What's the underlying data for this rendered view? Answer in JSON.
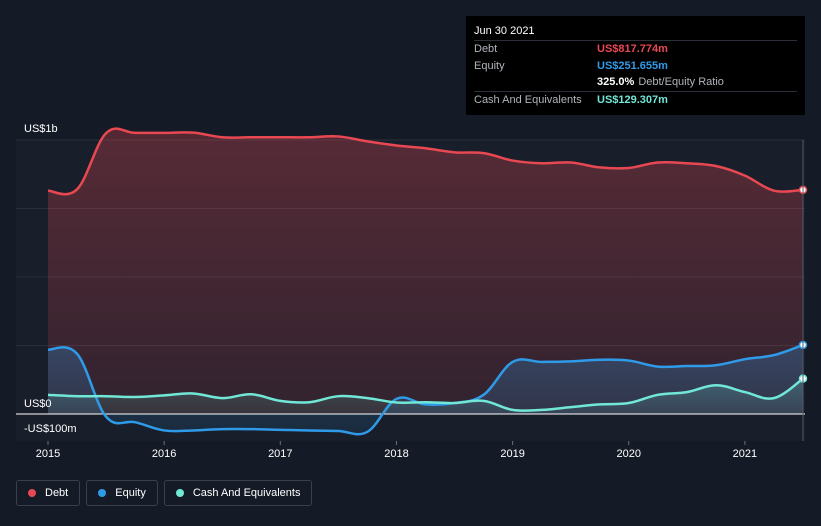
{
  "tooltip": {
    "date": "Jun 30 2021",
    "rows": [
      {
        "label": "Debt",
        "value": "US$817.774m",
        "color": "#e84852"
      },
      {
        "label": "Equity",
        "value": "US$251.655m",
        "color": "#2f9be8"
      },
      {
        "label": "",
        "value": "325.0%",
        "extra": "Debt/Equity Ratio",
        "color": "#ffffff"
      },
      {
        "label": "Cash And Equivalents",
        "value": "US$129.307m",
        "color": "#71e7d6"
      }
    ]
  },
  "legend": [
    {
      "label": "Debt",
      "color": "#e84852"
    },
    {
      "label": "Equity",
      "color": "#2f9be8"
    },
    {
      "label": "Cash And Equivalents",
      "color": "#71e7d6"
    }
  ],
  "chart_data": {
    "type": "area",
    "title": "",
    "xlabel": "",
    "ylabel": "",
    "ylim": [
      -100,
      1000
    ],
    "y_tick_labels": [
      {
        "value": 1000,
        "label": "US$1b"
      },
      {
        "value": 0,
        "label": "US$0"
      },
      {
        "value": -100,
        "label": "-US$100m"
      }
    ],
    "x_tick_labels": [
      {
        "value": 2015,
        "label": "2015"
      },
      {
        "value": 2016,
        "label": "2016"
      },
      {
        "value": 2017,
        "label": "2017"
      },
      {
        "value": 2018,
        "label": "2018"
      },
      {
        "value": 2019,
        "label": "2019"
      },
      {
        "value": 2020,
        "label": "2020"
      },
      {
        "value": 2021,
        "label": "2021"
      }
    ],
    "xlim": [
      2014.75,
      2021.5
    ],
    "series": [
      {
        "name": "Debt",
        "color": "#e84852",
        "x": [
          2015.0,
          2015.25,
          2015.5,
          2015.75,
          2016.0,
          2016.25,
          2016.5,
          2016.75,
          2017.0,
          2017.25,
          2017.5,
          2017.75,
          2018.0,
          2018.25,
          2018.5,
          2018.75,
          2019.0,
          2019.25,
          2019.5,
          2019.75,
          2020.0,
          2020.25,
          2020.5,
          2020.75,
          2021.0,
          2021.25,
          2021.5
        ],
        "y": [
          815,
          820,
          1025,
          1026,
          1026,
          1027,
          1010,
          1010,
          1010,
          1010,
          1013,
          995,
          980,
          970,
          955,
          952,
          925,
          915,
          918,
          900,
          898,
          918,
          915,
          905,
          870,
          815,
          818
        ]
      },
      {
        "name": "Equity",
        "color": "#2f9be8",
        "x": [
          2015.0,
          2015.25,
          2015.5,
          2015.75,
          2016.0,
          2016.25,
          2016.5,
          2016.75,
          2017.0,
          2017.25,
          2017.5,
          2017.75,
          2018.0,
          2018.25,
          2018.5,
          2018.75,
          2019.0,
          2019.25,
          2019.5,
          2019.75,
          2020.0,
          2020.25,
          2020.5,
          2020.75,
          2021.0,
          2021.25,
          2021.5
        ],
        "y": [
          235,
          220,
          -10,
          -30,
          -60,
          -60,
          -55,
          -55,
          -58,
          -60,
          -62,
          -65,
          55,
          35,
          40,
          70,
          190,
          190,
          192,
          198,
          195,
          173,
          175,
          178,
          200,
          215,
          252
        ]
      },
      {
        "name": "Cash And Equivalents",
        "color": "#71e7d6",
        "x": [
          2015.0,
          2015.25,
          2015.5,
          2015.75,
          2016.0,
          2016.25,
          2016.5,
          2016.75,
          2017.0,
          2017.25,
          2017.5,
          2017.75,
          2018.0,
          2018.25,
          2018.5,
          2018.75,
          2019.0,
          2019.25,
          2019.5,
          2019.75,
          2020.0,
          2020.25,
          2020.5,
          2020.75,
          2021.0,
          2021.25,
          2021.5
        ],
        "y": [
          70,
          65,
          65,
          62,
          68,
          75,
          58,
          72,
          48,
          43,
          65,
          58,
          42,
          43,
          40,
          48,
          15,
          15,
          25,
          35,
          40,
          70,
          80,
          105,
          80,
          58,
          129
        ]
      }
    ]
  }
}
